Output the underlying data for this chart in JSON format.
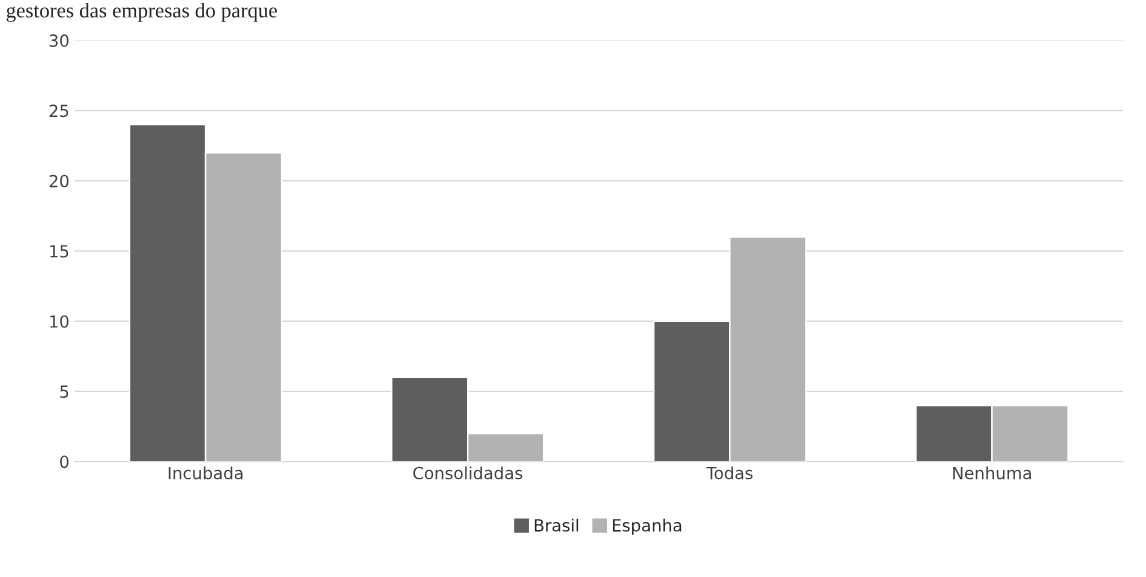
{
  "chart_data": {
    "type": "bar",
    "title": "gestores das empresas do parque",
    "categories": [
      "Incubada",
      "Consolidadas",
      "Todas",
      "Nenhuma"
    ],
    "series": [
      {
        "name": "Brasil",
        "color": "#5e5e5e",
        "values": [
          24,
          6,
          10,
          4
        ]
      },
      {
        "name": "Espanha",
        "color": "#b2b2b2",
        "values": [
          22,
          2,
          16,
          4
        ]
      }
    ],
    "ylim": [
      0,
      30
    ],
    "yticks": [
      0,
      5,
      10,
      15,
      20,
      25,
      30
    ],
    "grid": "y",
    "legend": "bottom"
  }
}
